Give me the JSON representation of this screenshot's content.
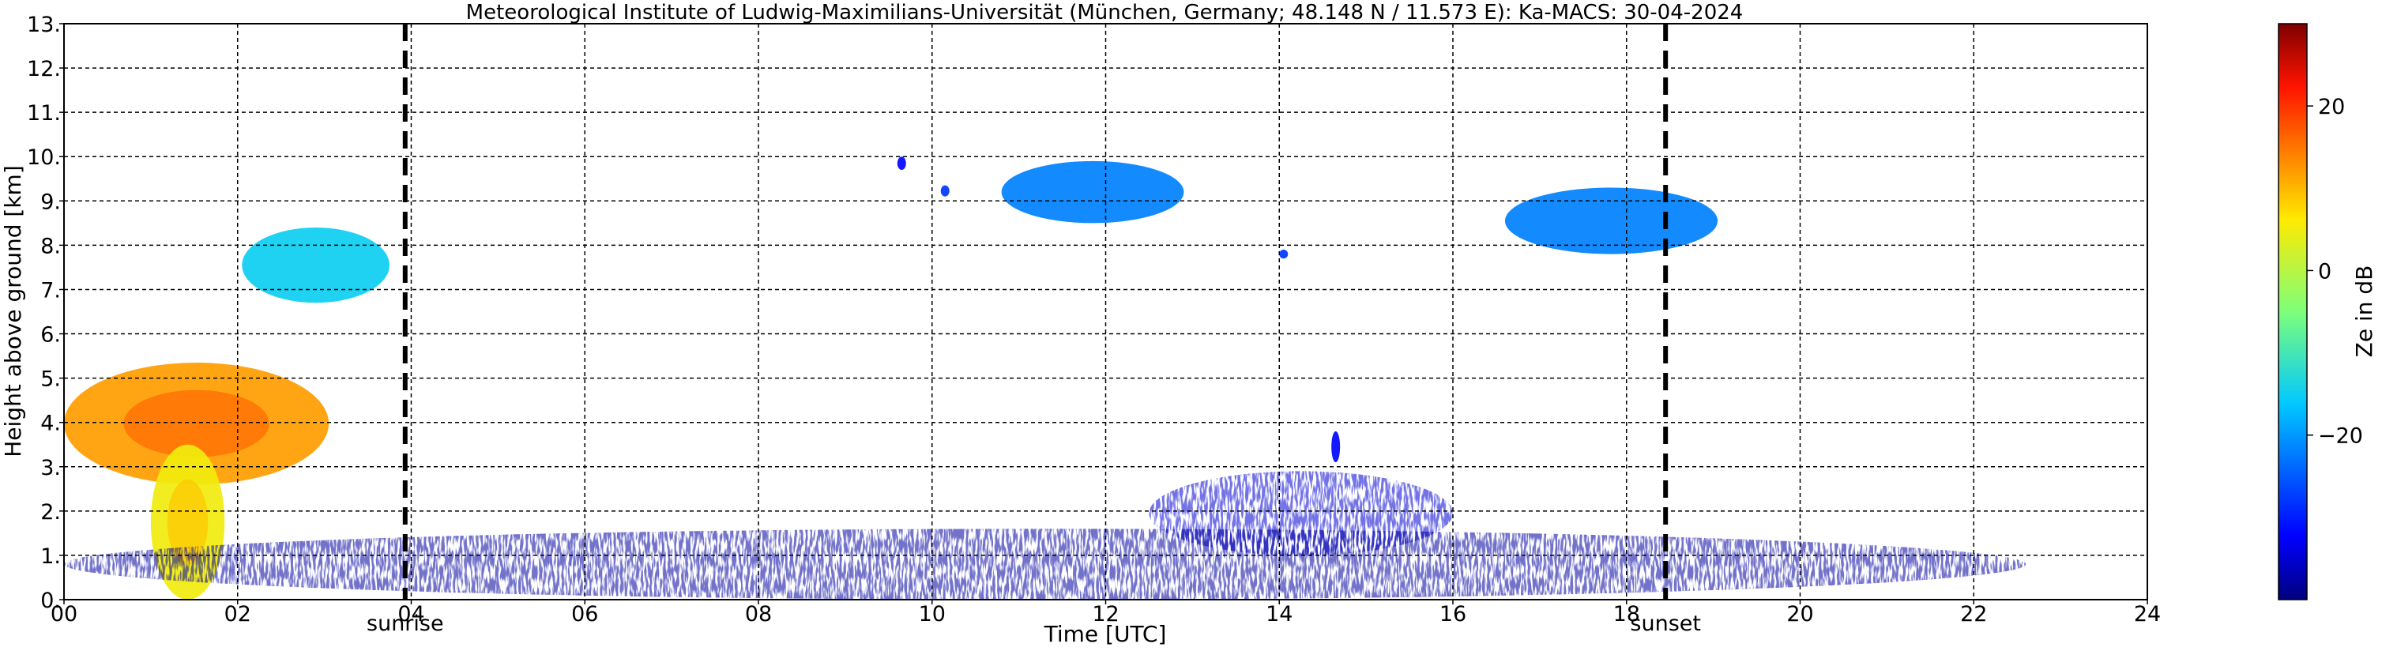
{
  "chart_data": {
    "type": "heatmap",
    "title": "Meteorological Institute of Ludwig-Maximilians-Universität (München, Germany; 48.148 N / 11.573 E):    Ka-MACS: 30-04-2024",
    "xlabel": "Time [UTC]",
    "ylabel": "Height above ground [km]",
    "xlim": [
      0,
      24
    ],
    "ylim": [
      0,
      13
    ],
    "x_ticks": [
      "00",
      "02",
      "04",
      "06",
      "08",
      "10",
      "12",
      "14",
      "16",
      "18",
      "20",
      "22",
      "24"
    ],
    "y_ticks": [
      "0.",
      "1.",
      "2.",
      "3.",
      "4.",
      "5.",
      "6.",
      "7.",
      "8.",
      "9.",
      "10.",
      "11.",
      "12.",
      "13."
    ],
    "grid": true,
    "markers": [
      {
        "label": "sunrise",
        "time": 3.93
      },
      {
        "label": "sunset",
        "time": 18.45
      }
    ],
    "colorbar": {
      "label": "Ze in dB",
      "range": [
        -40,
        30
      ],
      "ticks": [
        "20",
        "0",
        "−20"
      ],
      "colormap": "jet"
    },
    "echo_regions": [
      {
        "t_start": 0.0,
        "t_end": 3.05,
        "h_bottom": 2.6,
        "h_top": 5.35,
        "ze_peak": 12
      },
      {
        "t_start": 1.0,
        "t_end": 1.85,
        "h_bottom": 0.0,
        "h_top": 3.5,
        "ze_peak": 5
      },
      {
        "t_start": 2.05,
        "t_end": 3.75,
        "h_bottom": 6.7,
        "h_top": 8.4,
        "ze_peak": -15
      },
      {
        "t_start": 10.8,
        "t_end": 12.9,
        "h_bottom": 8.5,
        "h_top": 9.9,
        "ze_peak": -22
      },
      {
        "t_start": 16.6,
        "t_end": 19.05,
        "h_bottom": 7.8,
        "h_top": 9.3,
        "ze_peak": -22
      },
      {
        "t_start": 9.6,
        "t_end": 9.7,
        "h_bottom": 9.7,
        "h_top": 10.0,
        "ze_peak": -32
      },
      {
        "t_start": 10.1,
        "t_end": 10.2,
        "h_bottom": 9.1,
        "h_top": 9.35,
        "ze_peak": -28
      },
      {
        "t_start": 14.0,
        "t_end": 14.1,
        "h_bottom": 7.7,
        "h_top": 7.9,
        "ze_peak": -28
      },
      {
        "t_start": 14.6,
        "t_end": 14.7,
        "h_bottom": 3.1,
        "h_top": 3.8,
        "ze_peak": -32
      },
      {
        "t_start": 12.5,
        "t_end": 16.0,
        "h_bottom": 1.0,
        "h_top": 2.9,
        "ze_peak": -35
      },
      {
        "t_start": 0.0,
        "t_end": 22.6,
        "h_bottom": 0.0,
        "h_top": 1.6,
        "ze_peak": -38
      }
    ],
    "colors": {
      "grid": "#000000",
      "marker_line": "#000000",
      "background": "#ffffff"
    }
  }
}
